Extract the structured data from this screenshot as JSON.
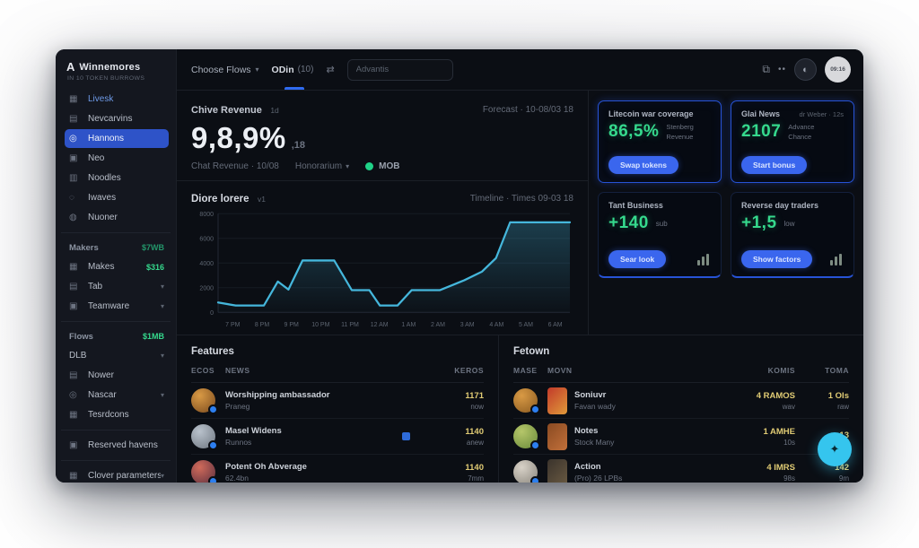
{
  "accent_colors": {
    "primary_blue": "#2e53c8",
    "button_blue": "#3a66ee",
    "green": "#35d98d",
    "chart_line": "#45b7dc",
    "value_yellow": "#e0cb74",
    "fab_cyan": "#35c5ee"
  },
  "sidebar": {
    "logo": {
      "mark": "A",
      "title": "Winnemores",
      "subtitle": "IN 10 TOKEN BURROWS"
    },
    "items": [
      {
        "type": "item",
        "icon": "grid-icon",
        "glyph": "▦",
        "label": "Livesk",
        "blue": true
      },
      {
        "type": "item",
        "icon": "layers-icon",
        "glyph": "▤",
        "label": "Nevcarvins"
      },
      {
        "type": "item",
        "icon": "pulse-icon",
        "glyph": "◎",
        "label": "Hannons",
        "active": true
      },
      {
        "type": "item",
        "icon": "cube-icon",
        "glyph": "▣",
        "label": "Neo"
      },
      {
        "type": "item",
        "icon": "chart-icon",
        "glyph": "▥",
        "label": "Noodles"
      },
      {
        "type": "item",
        "icon": "wave-icon",
        "glyph": "◌",
        "label": "Iwaves"
      },
      {
        "type": "item",
        "icon": "coin-icon",
        "glyph": "◍",
        "label": "Nuoner"
      },
      {
        "type": "divider"
      },
      {
        "type": "section",
        "label": "Makers",
        "value": "$7WB",
        "dim": true
      },
      {
        "type": "item",
        "icon": "spark-icon",
        "glyph": "▦",
        "label": "Makes",
        "value": "$316"
      },
      {
        "type": "item",
        "icon": "tab-icon",
        "glyph": "▤",
        "label": "Tab",
        "chevron": true
      },
      {
        "type": "item",
        "icon": "team-icon",
        "glyph": "▣",
        "label": "Teamware",
        "chevron": true
      },
      {
        "type": "divider"
      },
      {
        "type": "section",
        "label": "Flows",
        "value": "$1MB"
      },
      {
        "type": "item",
        "icon": "folder-icon",
        "glyph": "",
        "label": "DLB",
        "chevron": true
      },
      {
        "type": "item",
        "icon": "news-icon",
        "glyph": "▤",
        "label": "Nower"
      },
      {
        "type": "item",
        "icon": "globe-icon",
        "glyph": "◎",
        "label": "Nascar",
        "chevron": true
      },
      {
        "type": "item",
        "icon": "tools-icon",
        "glyph": "▦",
        "label": "Tesrdcons"
      },
      {
        "type": "divider"
      },
      {
        "type": "item",
        "icon": "vault-icon",
        "glyph": "▣",
        "label": "Reserved havens"
      },
      {
        "type": "divider"
      },
      {
        "type": "item",
        "icon": "settings-icon",
        "glyph": "▦",
        "label": "Clover parameters",
        "chevron": true
      }
    ]
  },
  "topbar": {
    "dropdown_label": "Choose Flows",
    "tab_name": "ODin",
    "tab_count": "(10)",
    "search_placeholder": "Advantis",
    "avatar_text": "09:16"
  },
  "stat": {
    "label": "Chive Revenue",
    "label_tag": "1d",
    "value": "9,8,9%",
    "value_sub": ",18",
    "meta1": "Chat Revenue · 10/08",
    "meta2": "Honorarium",
    "legend_label": "MOB",
    "legend_color": "#1fd287",
    "forecast": "Forecast · 10-08/03 18"
  },
  "chart_header": {
    "title": "Diore lorere",
    "tag": "v1",
    "range": "Timeline · Times 09-03 18"
  },
  "chart_data": {
    "type": "area",
    "title": "Diore lorere",
    "xlabel": "",
    "ylabel": "",
    "ylim": [
      0,
      8000
    ],
    "yticks": [
      0,
      2000,
      4000,
      6000,
      8000
    ],
    "x_tick_labels": [
      "7 PM",
      "8 PM",
      "9 PM",
      "10 PM",
      "11 PM",
      "12 AM",
      "1 AM",
      "2 AM",
      "3 AM",
      "4 AM",
      "5 AM",
      "6 AM"
    ],
    "grid": true,
    "legend_position": "none",
    "line_color": "#45b7dc",
    "points": [
      [
        0,
        800
      ],
      [
        5,
        550
      ],
      [
        13,
        550
      ],
      [
        17,
        2500
      ],
      [
        20,
        1850
      ],
      [
        24,
        4200
      ],
      [
        33,
        4200
      ],
      [
        38,
        1800
      ],
      [
        43,
        1800
      ],
      [
        46,
        550
      ],
      [
        51,
        550
      ],
      [
        55,
        1800
      ],
      [
        63,
        1800
      ],
      [
        70,
        2600
      ],
      [
        75,
        3300
      ],
      [
        79,
        4400
      ],
      [
        83,
        7300
      ],
      [
        100,
        7300
      ]
    ]
  },
  "cards": [
    {
      "title": "Litecoin war coverage",
      "meta": "",
      "value": "86,5%",
      "value_sub": "",
      "side": [
        "Stenberg",
        "Revenue"
      ],
      "button": "Swap tokens",
      "chart_icon": false,
      "accent": "full"
    },
    {
      "title": "Glai News",
      "meta": "dr Weber · 12s",
      "value": "2107",
      "value_sub": "",
      "side": [
        "Advance",
        "Chance"
      ],
      "button": "Start bonus",
      "chart_icon": false,
      "accent": "full"
    },
    {
      "title": "Tant Business",
      "meta": "",
      "value": "+140",
      "value_sub": "sub",
      "side": [],
      "button": "Sear look",
      "chart_icon": true,
      "accent": "bottom"
    },
    {
      "title": "Reverse day traders",
      "meta": "",
      "value": "+1,5",
      "value_sub": "low",
      "side": [],
      "button": "Show factors",
      "chart_icon": true,
      "accent": "bottom"
    }
  ],
  "table_left": {
    "title": "Features",
    "columns": [
      "Ecos",
      "News",
      "Keros"
    ],
    "rows": [
      {
        "coin": [
          "#d99a45",
          "#7a4a1e"
        ],
        "name": "Worshipping ambassador",
        "sub": "Praneg",
        "cells": [
          {
            "v": "1171",
            "s": "now"
          }
        ]
      },
      {
        "coin": [
          "#b9c2cc",
          "#6e7680"
        ],
        "name": "Masel Widens",
        "sub": "Runnos",
        "flag": true,
        "cells": [
          {
            "v": "1140",
            "s": "anew"
          }
        ]
      },
      {
        "coin": [
          "#d06a5a",
          "#5a2f3f"
        ],
        "name": "Potent Oh Abverage",
        "sub": "62.4bn",
        "cells": [
          {
            "v": "1140",
            "s": "7mm"
          }
        ]
      }
    ]
  },
  "table_right": {
    "title": "Fetown",
    "columns": [
      "Mase",
      "Movn",
      "Komis",
      "Toma"
    ],
    "rows": [
      {
        "coin": [
          "#d99a45",
          "#8a5a20"
        ],
        "thumb": [
          "#c23a2a",
          "#e09a3a"
        ],
        "name": "Soniuvr",
        "sub": "Favan wady",
        "cells": [
          {
            "v": "4 RAMOS",
            "s": "wav"
          },
          {
            "v": "1 OIs",
            "s": "raw"
          }
        ]
      },
      {
        "coin": [
          "#b5c66a",
          "#6a8a3a"
        ],
        "thumb": [
          "#8a4a22",
          "#c2703a"
        ],
        "name": "Notes",
        "sub": "Stock Many",
        "cells": [
          {
            "v": "1 AMHE",
            "s": "10s"
          },
          {
            "v": "13",
            "s": ""
          }
        ]
      },
      {
        "coin": [
          "#d8d2c8",
          "#8a857c"
        ],
        "thumb": [
          "#3a332c",
          "#6a5a42"
        ],
        "name": "Action",
        "sub": "(Pro) 26 LPBs",
        "cells": [
          {
            "v": "4 IMRS",
            "s": "98s"
          },
          {
            "v": "142",
            "s": "9m"
          }
        ]
      }
    ]
  },
  "fab": {
    "glyph": "✦"
  }
}
